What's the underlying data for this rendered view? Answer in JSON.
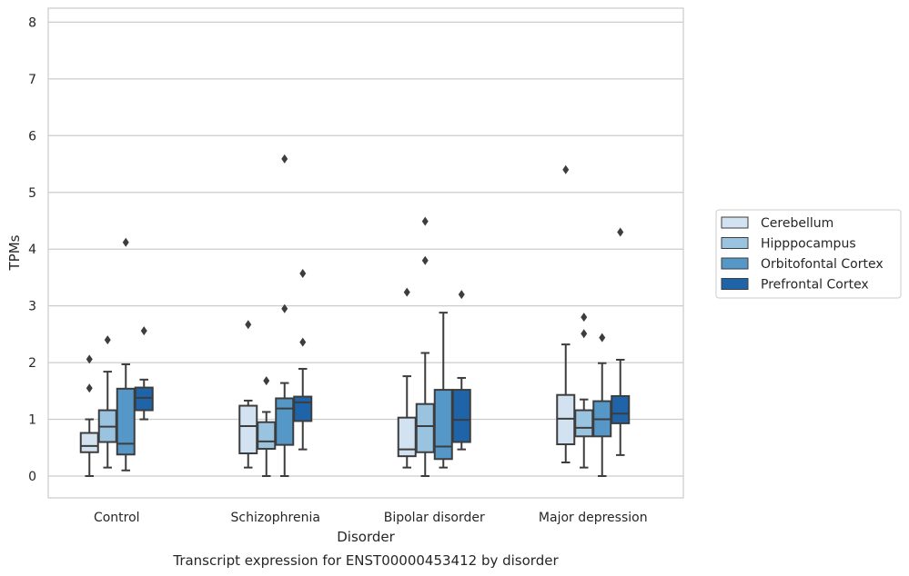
{
  "chart_data": {
    "type": "box",
    "title": "Transcript expression for ENST00000453412 by disorder",
    "xlabel": "Disorder",
    "ylabel": "TPMs",
    "ylim": [
      -0.38,
      8.25
    ],
    "yticks": [
      0,
      1,
      2,
      3,
      4,
      5,
      6,
      7,
      8
    ],
    "grid": "horizontal",
    "legend_position": "right",
    "categories": [
      "Control",
      "Schizophrenia",
      "Bipolar disorder",
      "Major depression"
    ],
    "series": [
      {
        "name": "Cerebellum",
        "color": "#d2e2f1",
        "boxes": [
          {
            "whislo": 0.0,
            "q1": 0.42,
            "med": 0.53,
            "q3": 0.76,
            "whishi": 1.0,
            "fliers": [
              1.55,
              2.06
            ]
          },
          {
            "whislo": 0.15,
            "q1": 0.4,
            "med": 0.88,
            "q3": 1.24,
            "whishi": 1.33,
            "fliers": [
              2.67
            ]
          },
          {
            "whislo": 0.15,
            "q1": 0.35,
            "med": 0.47,
            "q3": 1.03,
            "whishi": 1.76,
            "fliers": [
              3.24
            ]
          },
          {
            "whislo": 0.24,
            "q1": 0.56,
            "med": 1.01,
            "q3": 1.43,
            "whishi": 2.32,
            "fliers": [
              5.4
            ]
          }
        ]
      },
      {
        "name": "Hipppocampus",
        "color": "#9ac3e0",
        "boxes": [
          {
            "whislo": 0.15,
            "q1": 0.6,
            "med": 0.87,
            "q3": 1.16,
            "whishi": 1.84,
            "fliers": [
              2.4
            ]
          },
          {
            "whislo": 0.0,
            "q1": 0.48,
            "med": 0.61,
            "q3": 0.95,
            "whishi": 1.13,
            "fliers": [
              1.68
            ]
          },
          {
            "whislo": 0.0,
            "q1": 0.42,
            "med": 0.88,
            "q3": 1.27,
            "whishi": 2.17,
            "fliers": [
              3.8,
              4.49
            ]
          },
          {
            "whislo": 0.15,
            "q1": 0.7,
            "med": 0.85,
            "q3": 1.16,
            "whishi": 1.35,
            "fliers": [
              2.51,
              2.8
            ]
          }
        ]
      },
      {
        "name": "Orbitofontal Cortex",
        "color": "#5598c7",
        "boxes": [
          {
            "whislo": 0.1,
            "q1": 0.38,
            "med": 0.57,
            "q3": 1.54,
            "whishi": 1.97,
            "fliers": [
              4.12
            ]
          },
          {
            "whislo": 0.0,
            "q1": 0.55,
            "med": 1.19,
            "q3": 1.37,
            "whishi": 1.64,
            "fliers": [
              2.95,
              5.59
            ]
          },
          {
            "whislo": 0.15,
            "q1": 0.3,
            "med": 0.52,
            "q3": 1.52,
            "whishi": 2.88,
            "fliers": []
          },
          {
            "whislo": 0.0,
            "q1": 0.7,
            "med": 1.0,
            "q3": 1.32,
            "whishi": 1.99,
            "fliers": [
              2.44
            ]
          }
        ]
      },
      {
        "name": "Prefrontal Cortex",
        "color": "#1f64a8",
        "boxes": [
          {
            "whislo": 1.0,
            "q1": 1.16,
            "med": 1.38,
            "q3": 1.56,
            "whishi": 1.7,
            "fliers": [
              2.56
            ]
          },
          {
            "whislo": 0.47,
            "q1": 0.97,
            "med": 1.3,
            "q3": 1.4,
            "whishi": 1.89,
            "fliers": [
              2.36,
              3.57
            ]
          },
          {
            "whislo": 0.47,
            "q1": 0.6,
            "med": 0.99,
            "q3": 1.52,
            "whishi": 1.73,
            "fliers": [
              3.2
            ]
          },
          {
            "whislo": 0.37,
            "q1": 0.93,
            "med": 1.1,
            "q3": 1.41,
            "whishi": 2.05,
            "fliers": [
              4.3
            ]
          }
        ]
      }
    ]
  }
}
